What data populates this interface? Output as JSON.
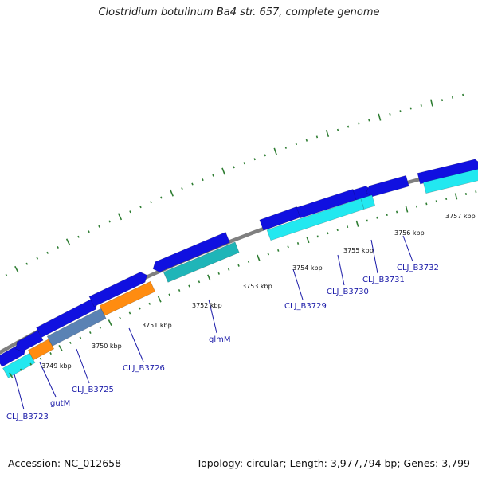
{
  "title": "Clostridium botulinum Ba4 str. 657, complete genome",
  "footer": {
    "accession": "Accession: NC_012658",
    "summary": "Topology: circular; Length: 3,977,794 bp; Genes: 3,799"
  },
  "colors": {
    "backbone": "#808080",
    "tick": "#2e7d32",
    "cds_blue": "#1010e0",
    "cds_cyan": "#22e8f0",
    "cds_teal": "#1fb5b8",
    "cds_orange": "#ff8c10",
    "cds_steel": "#5a82b4",
    "cds_grey": "#b8b8b8",
    "label": "#1a1aa8"
  },
  "genome_map": {
    "kbp_ticks": [
      "3749 kbp",
      "3750 kbp",
      "3751 kbp",
      "3752 kbp",
      "3753 kbp",
      "3754 kbp",
      "3755 kbp",
      "3756 kbp",
      "3757 kbp"
    ],
    "gene_labels": [
      "CLJ_B3723",
      "gutM",
      "CLJ_B3725",
      "CLJ_B3726",
      "glmM",
      "CLJ_B3729",
      "CLJ_B3730",
      "CLJ_B3731",
      "CLJ_B3732"
    ]
  }
}
